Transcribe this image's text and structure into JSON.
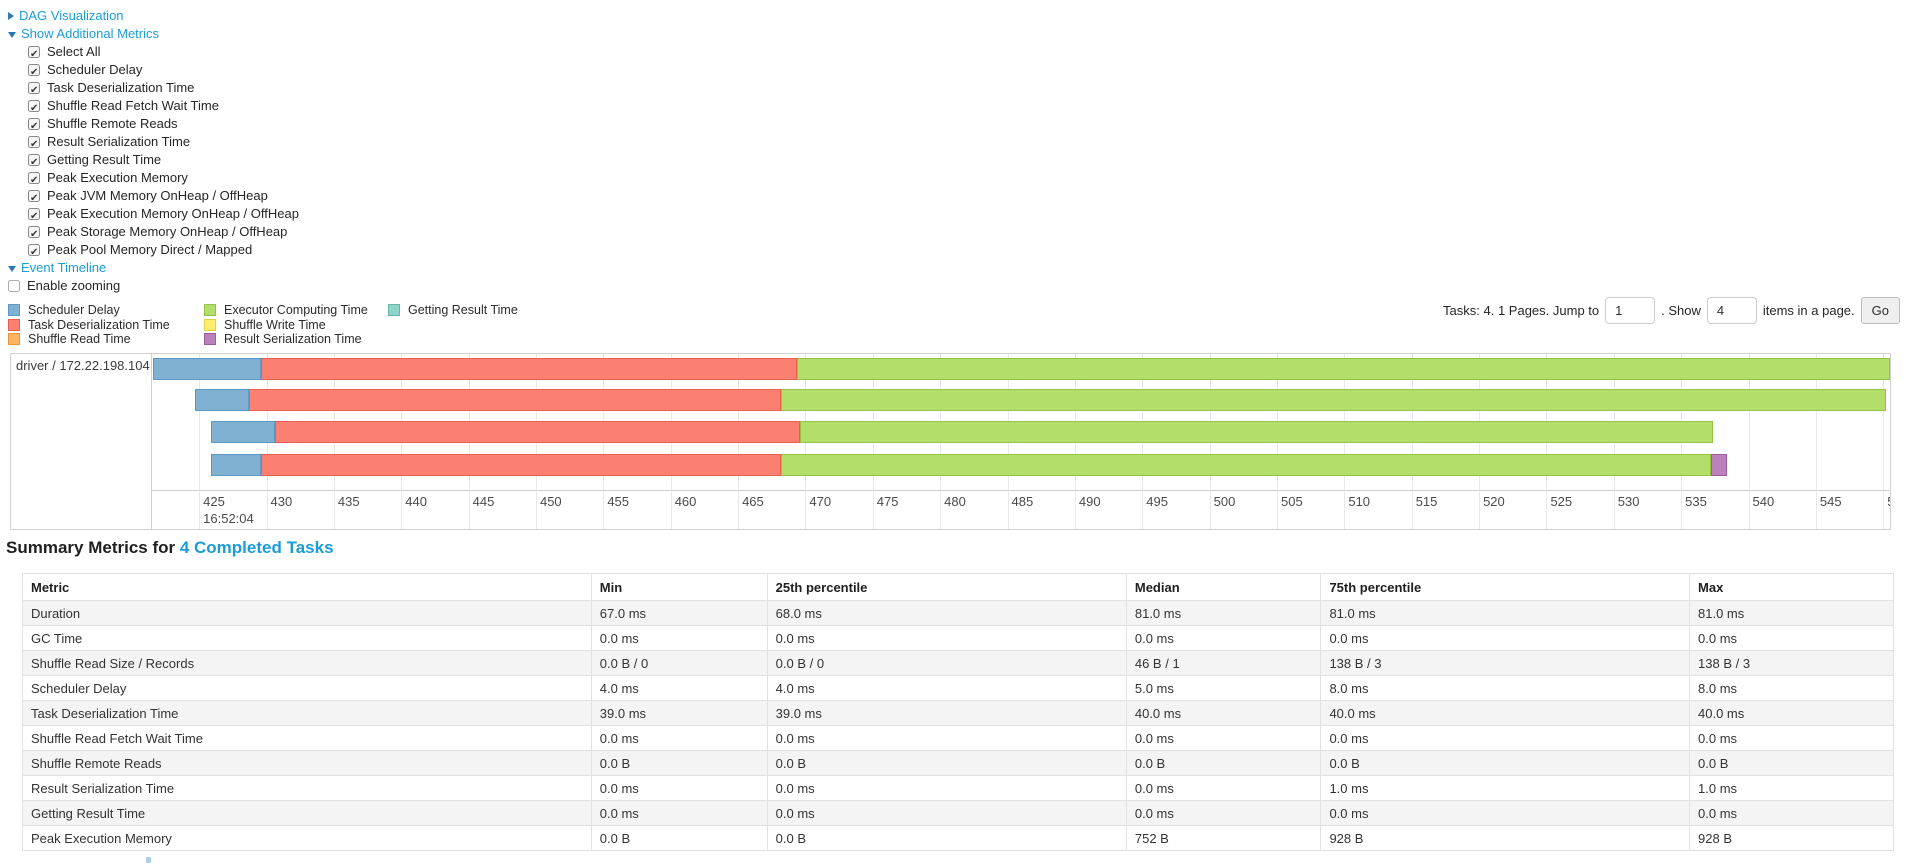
{
  "accent_color": "#1b9cd8",
  "sections": {
    "dag_label": "DAG Visualization",
    "metrics_label": "Show Additional Metrics",
    "timeline_label": "Event Timeline",
    "enable_zooming_label": "Enable zooming"
  },
  "metrics_panel": {
    "items": [
      "Select All",
      "Scheduler Delay",
      "Task Deserialization Time",
      "Shuffle Read Fetch Wait Time",
      "Shuffle Remote Reads",
      "Result Serialization Time",
      "Getting Result Time",
      "Peak Execution Memory",
      "Peak JVM Memory OnHeap / OffHeap",
      "Peak Execution Memory OnHeap / OffHeap",
      "Peak Storage Memory OnHeap / OffHeap",
      "Peak Pool Memory Direct / Mapped"
    ],
    "all_checked": true
  },
  "pagination": {
    "tasks_text": "Tasks: 4. 1 Pages. Jump to",
    "jump_value": "1",
    "show_text": ". Show",
    "show_value": "4",
    "items_text": "items in a page.",
    "go_label": "Go"
  },
  "chart_data": {
    "type": "bar",
    "subtype": "horizontal-stacked-event-timeline",
    "groups": [
      "driver / 172.22.198.104"
    ],
    "axis": {
      "min": 421.5,
      "max": 550.5,
      "tick_start": 425,
      "tick_step": 5,
      "tick_end": 550,
      "time_label": "16:52:04",
      "time_label_tick": 425,
      "unit": "ms within 16:52:04"
    },
    "legend": [
      {
        "label": "Scheduler Delay",
        "color": "#80B1D3",
        "border": "#5e99c5",
        "col": 0
      },
      {
        "label": "Task Deserialization Time",
        "color": "#FB8072",
        "border": "#e5614f",
        "col": 0
      },
      {
        "label": "Shuffle Read Time",
        "color": "#FDB462",
        "border": "#e8963a",
        "col": 0
      },
      {
        "label": "Executor Computing Time",
        "color": "#B3DE69",
        "border": "#92c345",
        "col": 1
      },
      {
        "label": "Shuffle Write Time",
        "color": "#FFED6F",
        "border": "#e3cf47",
        "col": 1
      },
      {
        "label": "Result Serialization Time",
        "color": "#BC80BD",
        "border": "#9e5ca0",
        "col": 1
      },
      {
        "label": "Getting Result Time",
        "color": "#8DD3C7",
        "border": "#66b5a7",
        "col": 2
      }
    ],
    "tasks": [
      {
        "group": "driver / 172.22.198.104",
        "segments": [
          {
            "name": "Scheduler Delay",
            "start": 421.6,
            "end": 429.6
          },
          {
            "name": "Task Deserialization Time",
            "start": 429.6,
            "end": 469.4
          },
          {
            "name": "Executor Computing Time",
            "start": 469.4,
            "end": 550.5
          }
        ]
      },
      {
        "group": "driver / 172.22.198.104",
        "segments": [
          {
            "name": "Scheduler Delay",
            "start": 424.7,
            "end": 428.7
          },
          {
            "name": "Task Deserialization Time",
            "start": 428.7,
            "end": 468.2
          },
          {
            "name": "Executor Computing Time",
            "start": 468.2,
            "end": 550.2
          }
        ]
      },
      {
        "group": "driver / 172.22.198.104",
        "segments": [
          {
            "name": "Scheduler Delay",
            "start": 425.9,
            "end": 430.6
          },
          {
            "name": "Task Deserialization Time",
            "start": 430.6,
            "end": 469.6
          },
          {
            "name": "Executor Computing Time",
            "start": 469.6,
            "end": 537.4
          }
        ]
      },
      {
        "group": "driver / 172.22.198.104",
        "segments": [
          {
            "name": "Scheduler Delay",
            "start": 425.9,
            "end": 429.6
          },
          {
            "name": "Task Deserialization Time",
            "start": 429.6,
            "end": 468.2
          },
          {
            "name": "Executor Computing Time",
            "start": 468.2,
            "end": 537.2
          },
          {
            "name": "Result Serialization Time",
            "start": 537.2,
            "end": 538.4
          }
        ]
      }
    ]
  },
  "summary": {
    "title_prefix": "Summary Metrics for ",
    "title_link": "4 Completed Tasks"
  },
  "summary_table": {
    "columns": [
      "Metric",
      "Min",
      "25th percentile",
      "Median",
      "75th percentile",
      "Max"
    ],
    "rows": [
      [
        "Duration",
        "67.0 ms",
        "68.0 ms",
        "81.0 ms",
        "81.0 ms",
        "81.0 ms"
      ],
      [
        "GC Time",
        "0.0 ms",
        "0.0 ms",
        "0.0 ms",
        "0.0 ms",
        "0.0 ms"
      ],
      [
        "Shuffle Read Size / Records",
        "0.0 B / 0",
        "0.0 B / 0",
        "46 B / 1",
        "138 B / 3",
        "138 B / 3"
      ],
      [
        "Scheduler Delay",
        "4.0 ms",
        "4.0 ms",
        "5.0 ms",
        "8.0 ms",
        "8.0 ms"
      ],
      [
        "Task Deserialization Time",
        "39.0 ms",
        "39.0 ms",
        "40.0 ms",
        "40.0 ms",
        "40.0 ms"
      ],
      [
        "Shuffle Read Fetch Wait Time",
        "0.0 ms",
        "0.0 ms",
        "0.0 ms",
        "0.0 ms",
        "0.0 ms"
      ],
      [
        "Shuffle Remote Reads",
        "0.0 B",
        "0.0 B",
        "0.0 B",
        "0.0 B",
        "0.0 B"
      ],
      [
        "Result Serialization Time",
        "0.0 ms",
        "0.0 ms",
        "0.0 ms",
        "1.0 ms",
        "1.0 ms"
      ],
      [
        "Getting Result Time",
        "0.0 ms",
        "0.0 ms",
        "0.0 ms",
        "0.0 ms",
        "0.0 ms"
      ],
      [
        "Peak Execution Memory",
        "0.0 B",
        "0.0 B",
        "752 B",
        "928 B",
        "928 B"
      ]
    ]
  }
}
